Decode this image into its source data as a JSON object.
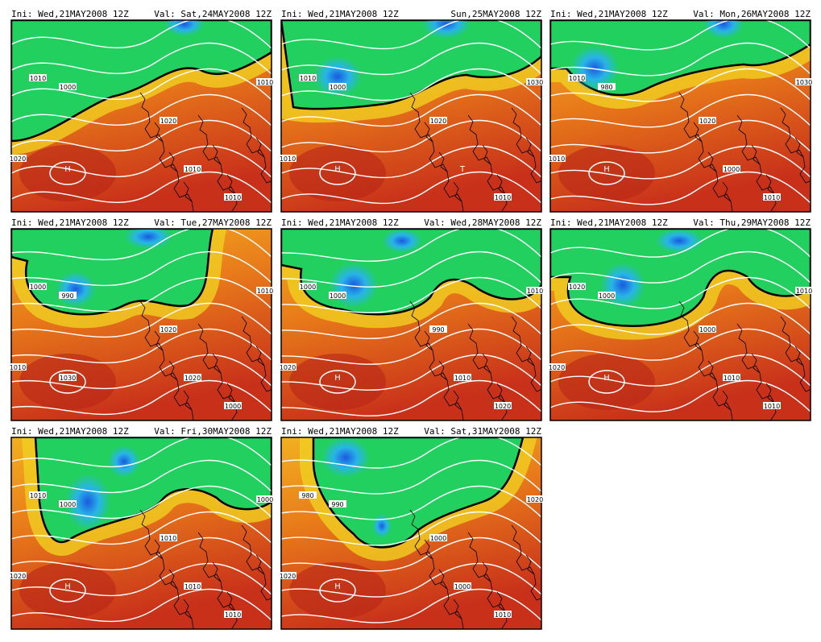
{
  "panels": [
    {
      "init": "Ini: Wed,21MAY2008 12Z",
      "valid": "Val: Sat,24MAY2008 12Z",
      "labels": [
        "1000",
        "1010",
        "1020",
        "1010",
        "H",
        "1020",
        "1010",
        "1010"
      ]
    },
    {
      "init": "Ini: Wed,21MAY2008 12Z",
      "valid": "Sun,25MAY2008 12Z",
      "labels": [
        "1000",
        "1010",
        "1020",
        "1030",
        "H",
        "1010",
        "1010",
        "T"
      ]
    },
    {
      "init": "Ini: Wed,21MAY2008 12Z",
      "valid": "Val: Mon,26MAY2008 12Z",
      "labels": [
        "980",
        "1010",
        "1020",
        "1030",
        "H",
        "1010",
        "1010",
        "1000"
      ]
    },
    {
      "init": "Ini: Wed,21MAY2008 12Z",
      "valid": "Val: Tue,27MAY2008 12Z",
      "labels": [
        "990",
        "1000",
        "1020",
        "1010",
        "1030",
        "1010",
        "1000",
        "1020"
      ]
    },
    {
      "init": "Ini: Wed,21MAY2008 12Z",
      "valid": "Val: Wed,28MAY2008 12Z",
      "labels": [
        "1000",
        "1000",
        "990",
        "1010",
        "H",
        "1020",
        "1020",
        "1010"
      ]
    },
    {
      "init": "Ini: Wed,21MAY2008 12Z",
      "valid": "Val: Thu,29MAY2008 12Z",
      "labels": [
        "1000",
        "1020",
        "1000",
        "1010",
        "H",
        "1020",
        "1010",
        "1010"
      ]
    },
    {
      "init": "Ini: Wed,21MAY2008 12Z",
      "valid": "Val: Fri,30MAY2008 12Z",
      "labels": [
        "1000",
        "1010",
        "1010",
        "1000",
        "H",
        "1020",
        "1010",
        "1010"
      ]
    },
    {
      "init": "Ini: Wed,21MAY2008 12Z",
      "valid": "Val: Sat,31MAY2008 12Z",
      "labels": [
        "990",
        "980",
        "1000",
        "1020",
        "H",
        "1020",
        "1010",
        "1000"
      ]
    }
  ]
}
